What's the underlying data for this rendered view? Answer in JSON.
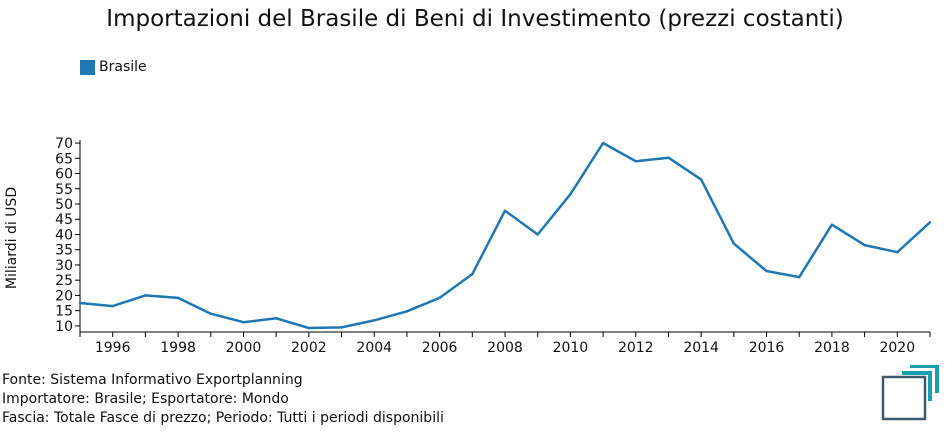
{
  "chart_data": {
    "type": "line",
    "title": "Importazioni del Brasile di Beni di Investimento (prezzi costanti)",
    "ylabel": "Miliardi di USD",
    "xlabel": "",
    "x": [
      1995,
      1996,
      1997,
      1998,
      1999,
      2000,
      2001,
      2002,
      2003,
      2004,
      2005,
      2006,
      2007,
      2008,
      2009,
      2010,
      2011,
      2012,
      2013,
      2014,
      2015,
      2016,
      2017,
      2018,
      2019,
      2020,
      2021
    ],
    "series": [
      {
        "name": "Brasile",
        "color": "#1f77b4",
        "values": [
          17.5,
          16.5,
          20,
          19.2,
          14,
          11.2,
          12.5,
          9.3,
          9.5,
          11.8,
          14.8,
          19.2,
          27,
          47.8,
          40,
          53.2,
          70,
          64,
          65.2,
          58,
          37,
          28,
          26,
          43.2,
          36.5,
          34.2,
          44
        ]
      }
    ],
    "yticks": [
      10,
      15,
      20,
      25,
      30,
      35,
      40,
      45,
      50,
      55,
      60,
      65,
      70
    ],
    "xticks": [
      1996,
      1998,
      2000,
      2002,
      2004,
      2006,
      2008,
      2010,
      2012,
      2014,
      2016,
      2018,
      2020
    ],
    "xlim": [
      1995,
      2021
    ],
    "ylim": [
      8,
      71
    ],
    "grid": false,
    "legend_position": "top-left"
  },
  "footer": {
    "source": "Fonte: Sistema Informativo Exportplanning",
    "importer": "Importatore: Brasile; Esportatore: Mondo",
    "band": "Fascia: Totale Fasce di prezzo; Periodo: Tutti i periodi disponibili"
  },
  "logo": {
    "icon": "exportplanning-logo-icon",
    "color_dark": "#3d5a6c",
    "color_accent": "#1a9fb0"
  }
}
